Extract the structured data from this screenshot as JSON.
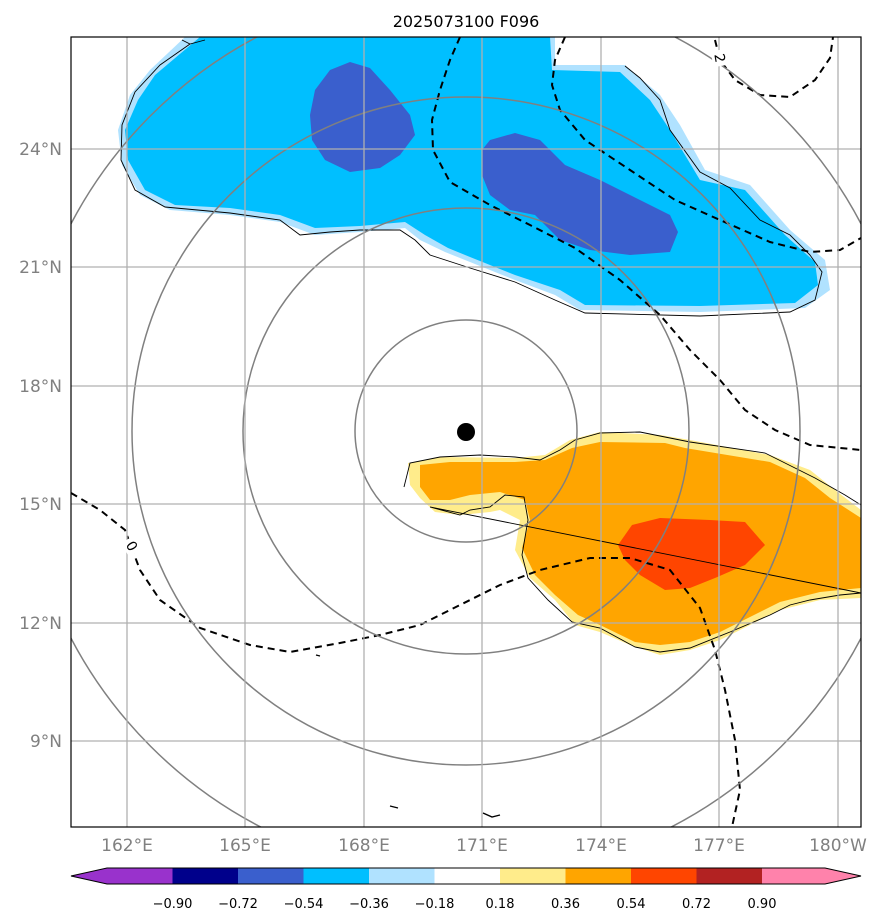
{
  "title": "2025073100 F096",
  "map": {
    "lon_labels": [
      "162°E",
      "165°E",
      "168°E",
      "171°E",
      "174°E",
      "177°E",
      "180°W"
    ],
    "lat_labels": [
      "24°N",
      "21°N",
      "18°N",
      "15°N",
      "12°N",
      "9°N"
    ],
    "grid": true,
    "center_marker": "storm-center-dot",
    "range_rings": 4
  },
  "contour_labels": [
    "0",
    "2"
  ],
  "colorbar": {
    "ticks": [
      "−0.90",
      "−0.72",
      "−0.54",
      "−0.36",
      "−0.18",
      "0.18",
      "0.36",
      "0.54",
      "0.72",
      "0.90"
    ],
    "colors": [
      "#9932cc",
      "#00008b",
      "#3a5fcd",
      "#00bfff",
      "#b0e2ff",
      "#ffffff",
      "#ffec8b",
      "#ffa500",
      "#ff4500",
      "#b22222",
      "#ff82ab"
    ],
    "extend": "both"
  }
}
